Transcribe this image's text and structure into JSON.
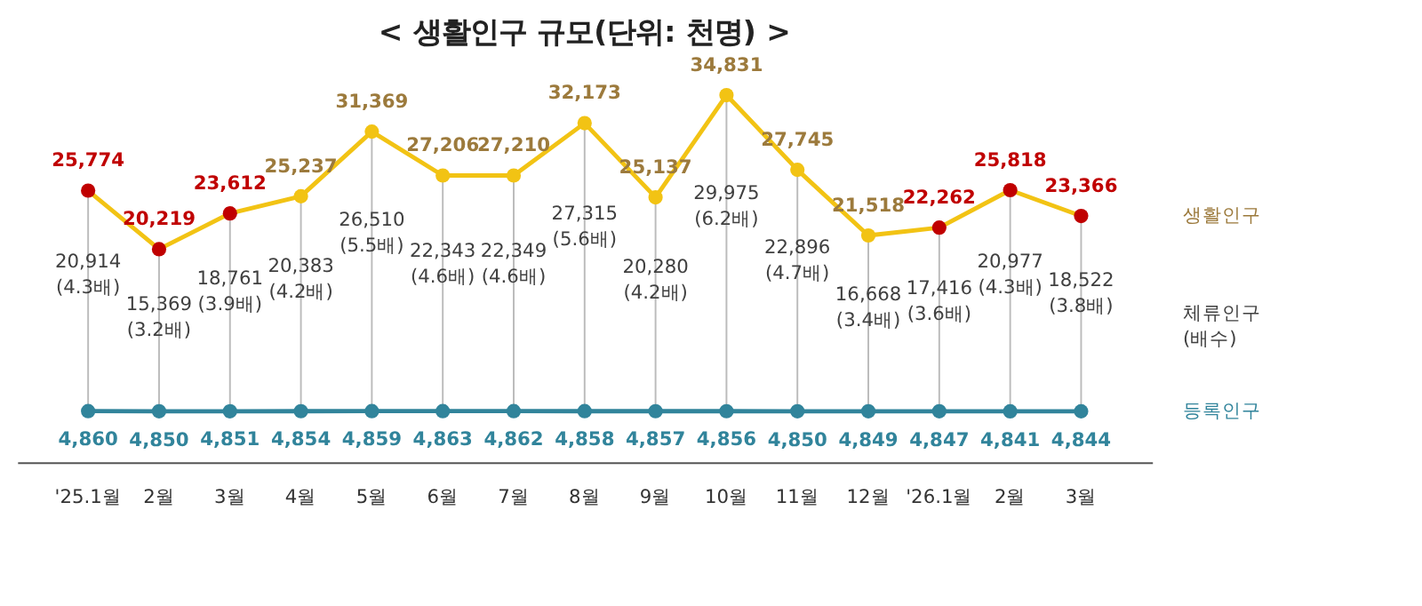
{
  "chart_data": {
    "type": "line",
    "title": "<  생활인구  규모(단위: 천명)  >",
    "categories": [
      "'25.1월",
      "2월",
      "3월",
      "4월",
      "5월",
      "6월",
      "7월",
      "8월",
      "9월",
      "10월",
      "11월",
      "12월",
      "'26.1월",
      "2월",
      "3월"
    ],
    "series": [
      {
        "name": "생활인구",
        "color": "#f2c314",
        "colors": [
          "#c00000",
          "#c00000",
          "#c00000",
          "#f2c314",
          "#f2c314",
          "#f2c314",
          "#f2c314",
          "#f2c314",
          "#f2c314",
          "#f2c314",
          "#f2c314",
          "#f2c314",
          "#c00000",
          "#c00000",
          "#c00000"
        ],
        "values": [
          25774,
          20219,
          23612,
          25237,
          31369,
          27206,
          27210,
          32173,
          25137,
          34831,
          27745,
          21518,
          22262,
          25818,
          23366
        ],
        "value_labels": [
          "25,774",
          "20,219",
          "23,612",
          "25,237",
          "31,369",
          "27,206",
          "27,210",
          "32,173",
          "25,137",
          "34,831",
          "27,745",
          "21,518",
          "22,262",
          "25,818",
          "23,366"
        ]
      },
      {
        "name": "등록인구",
        "color": "#31849b",
        "values": [
          4860,
          4850,
          4851,
          4854,
          4859,
          4863,
          4862,
          4858,
          4857,
          4856,
          4850,
          4849,
          4847,
          4841,
          4844
        ],
        "value_labels": [
          "4,860",
          "4,850",
          "4,851",
          "4,854",
          "4,859",
          "4,863",
          "4,862",
          "4,858",
          "4,857",
          "4,856",
          "4,850",
          "4,849",
          "4,847",
          "4,841",
          "4,844"
        ]
      }
    ],
    "marker": "circle",
    "tick_labels": "x",
    "grid": "x",
    "annotations": [
      "20,914 (4.3배)",
      "15,369 (3.2배)",
      "18,761 (3.9배)",
      "20,383 (4.2배)",
      "26,510 (5.5배)",
      "22,343 (4.6배)",
      "22,349 (4.6배)",
      "27,315 (5.6배)",
      "20,280 (4.2배)",
      "29,975 (6.2배)",
      "22,896 (4.7배)",
      "16,668 (3.4배)",
      "17,416 (3.6배)",
      "20,977 (4.3배)",
      "18,522 (3.8배)",
      "체류인구 (배수)"
    ]
  }
}
